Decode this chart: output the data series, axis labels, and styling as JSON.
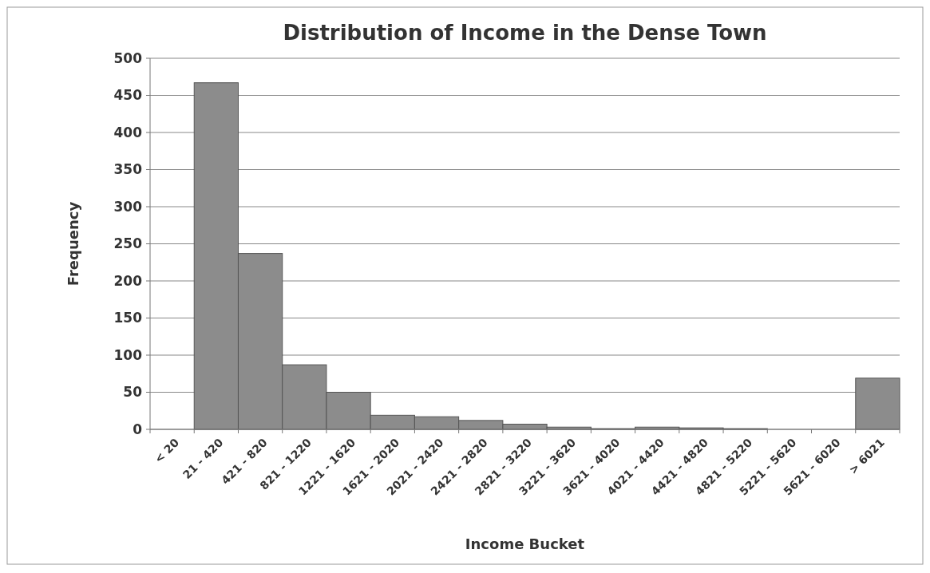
{
  "chart_data": {
    "type": "bar",
    "title": "Distribution of Income in the Dense Town",
    "xlabel": "Income Bucket",
    "ylabel": "Frequency",
    "categories": [
      "< 20",
      "21 - 420",
      "421 - 820",
      "821 - 1220",
      "1221 - 1620",
      "1621 - 2020",
      "2021 - 2420",
      "2421 - 2820",
      "2821 - 3220",
      "3221 - 3620",
      "3621 - 4020",
      "4021 - 4420",
      "4421 - 4820",
      "4821 - 5220",
      "5221 - 5620",
      "5621 - 6020",
      "> 6021"
    ],
    "values": [
      0,
      467,
      237,
      87,
      50,
      19,
      17,
      12,
      7,
      3,
      1,
      3,
      2,
      1,
      0,
      0,
      69
    ],
    "color": "#8c8c8c",
    "ylim": [
      0,
      500
    ],
    "yticks": [
      0,
      50,
      100,
      150,
      200,
      250,
      300,
      350,
      400,
      450,
      500
    ],
    "grid": "y"
  }
}
